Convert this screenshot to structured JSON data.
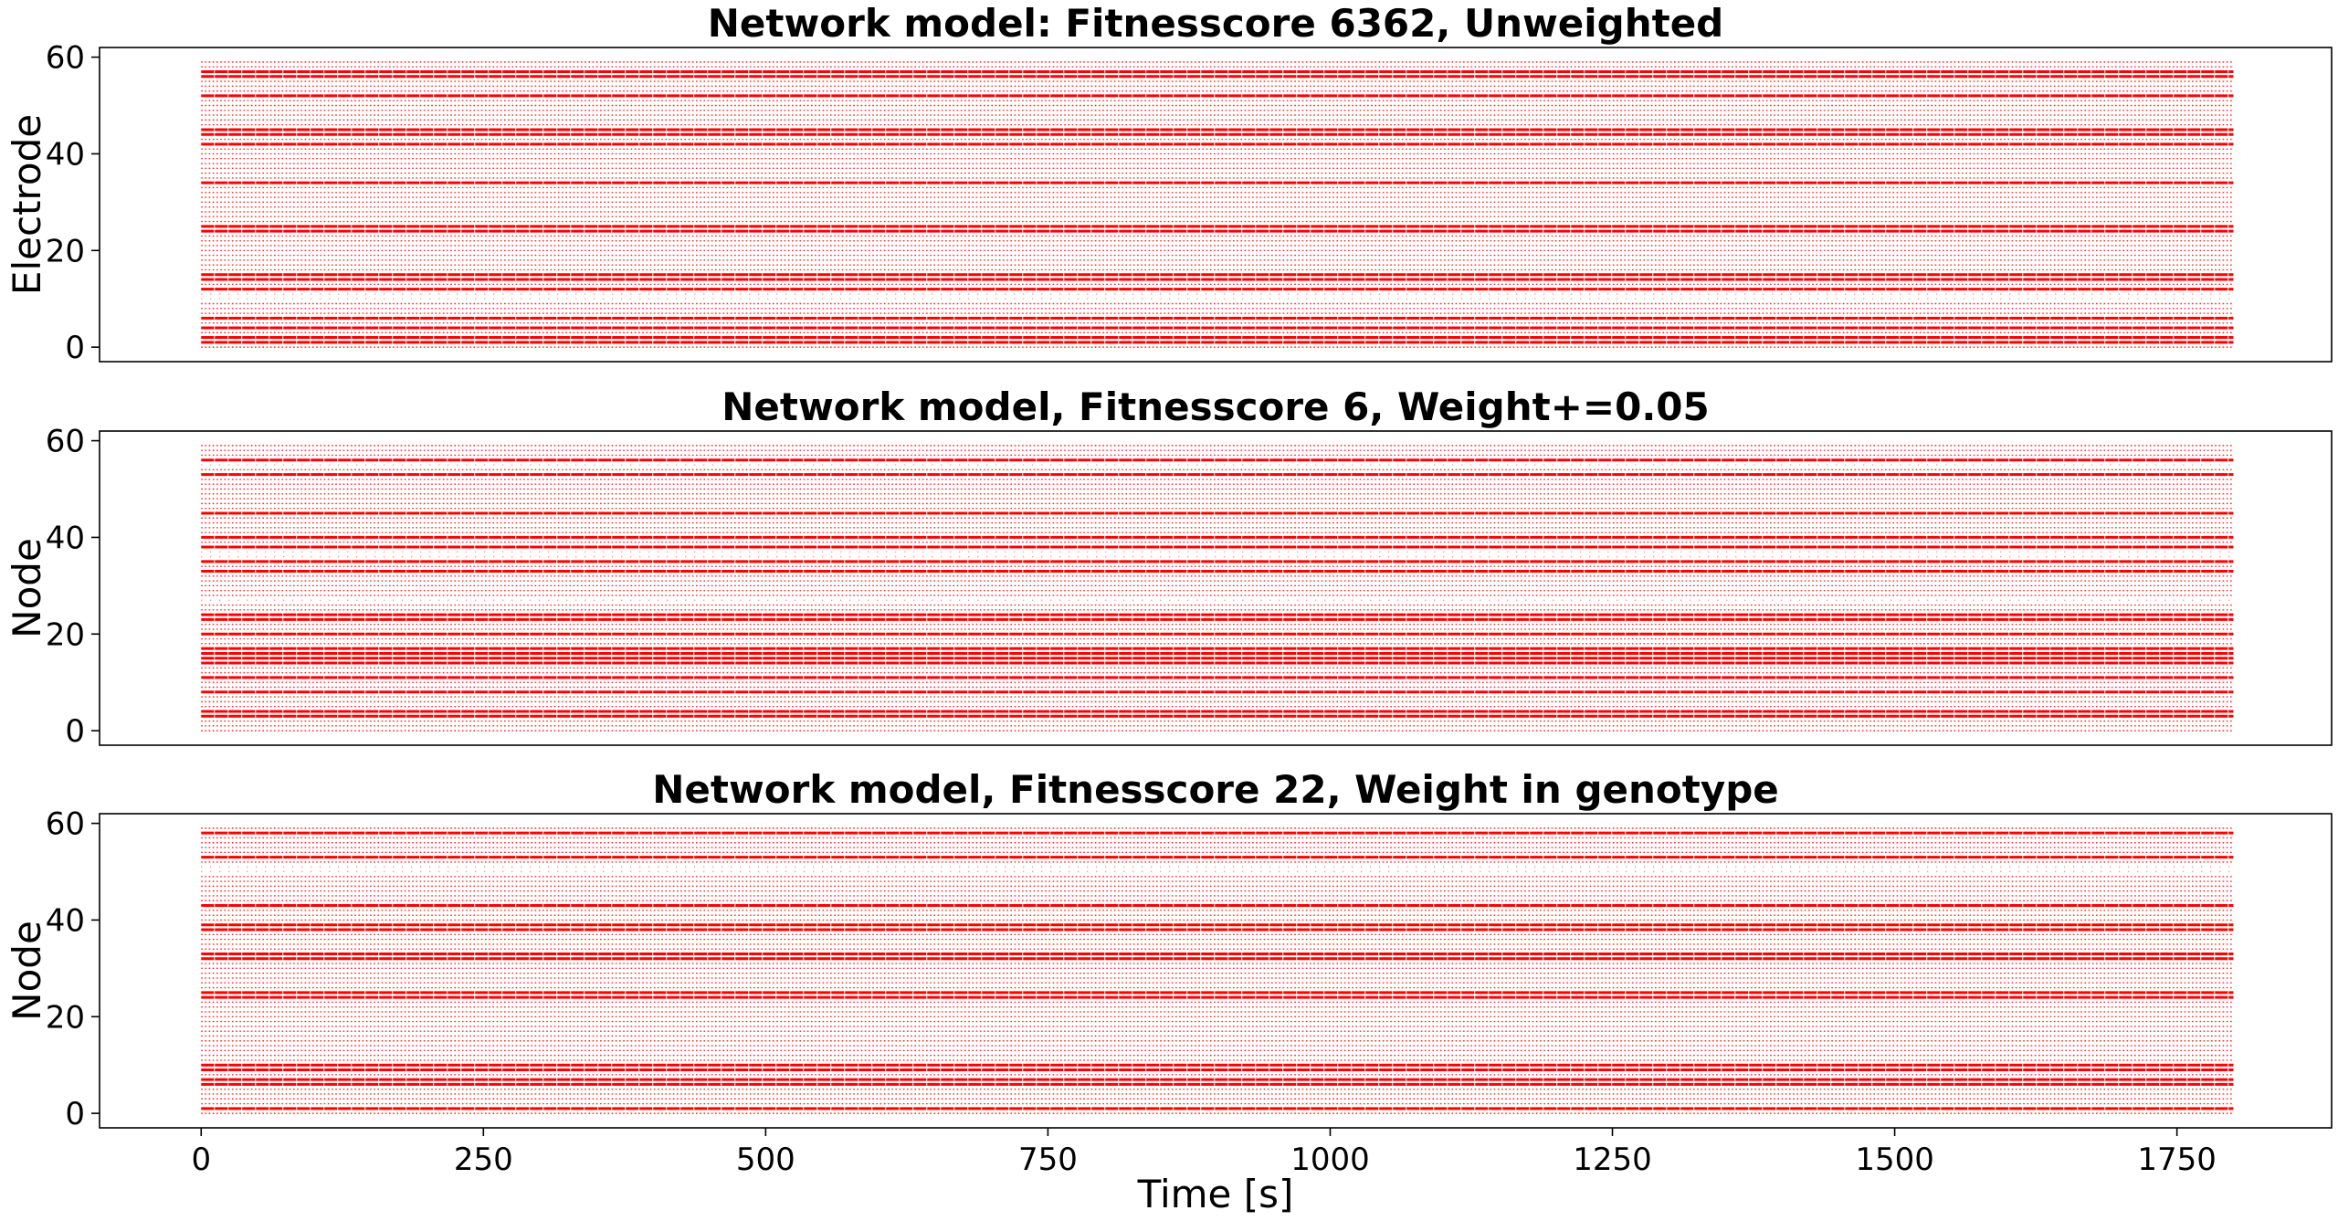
{
  "chart_data": [
    {
      "type": "scatter",
      "subtype": "raster",
      "title": "Network model: Fitnesscore 6362, Unweighted",
      "xlabel": "",
      "ylabel": "Electrode",
      "xlim": [
        -90,
        1887
      ],
      "ylim": [
        -3,
        62
      ],
      "xticks": [],
      "yticks": [
        0,
        20,
        40,
        60
      ],
      "x_range": [
        0,
        1800
      ],
      "channels": [
        0,
        59
      ],
      "marker_color": "#ff0000",
      "dense_channels": [
        1,
        2,
        4,
        6,
        12,
        14,
        15,
        24,
        25,
        34,
        42,
        44,
        45,
        52,
        56,
        57
      ],
      "sparse_channels": [
        10,
        11
      ]
    },
    {
      "type": "scatter",
      "subtype": "raster",
      "title": "Network model, Fitnesscore 6, Weight+=0.05",
      "xlabel": "",
      "ylabel": "Node",
      "xlim": [
        -90,
        1887
      ],
      "ylim": [
        -3,
        62
      ],
      "xticks": [],
      "yticks": [
        0,
        20,
        40,
        60
      ],
      "x_range": [
        0,
        1800
      ],
      "channels": [
        0,
        59
      ],
      "marker_color": "#ff0000",
      "dense_channels": [
        3,
        4,
        8,
        11,
        14,
        15,
        16,
        17,
        20,
        23,
        24,
        33,
        35,
        38,
        40,
        45,
        53,
        56
      ],
      "sparse_channels": [
        27,
        36,
        37,
        55
      ]
    },
    {
      "type": "scatter",
      "subtype": "raster",
      "title": "Network model, Fitnesscore 22, Weight in genotype",
      "xlabel": "Time [s]",
      "ylabel": "Node",
      "xlim": [
        -90,
        1887
      ],
      "ylim": [
        -3,
        62
      ],
      "xticks": [
        0,
        250,
        500,
        750,
        1000,
        1250,
        1500,
        1750
      ],
      "yticks": [
        0,
        20,
        40,
        60
      ],
      "x_range": [
        0,
        1800
      ],
      "channels": [
        0,
        59
      ],
      "marker_color": "#ff0000",
      "dense_channels": [
        1,
        6,
        7,
        9,
        10,
        24,
        25,
        32,
        33,
        38,
        39,
        43,
        53,
        58
      ],
      "sparse_channels": [
        50,
        51
      ]
    }
  ]
}
